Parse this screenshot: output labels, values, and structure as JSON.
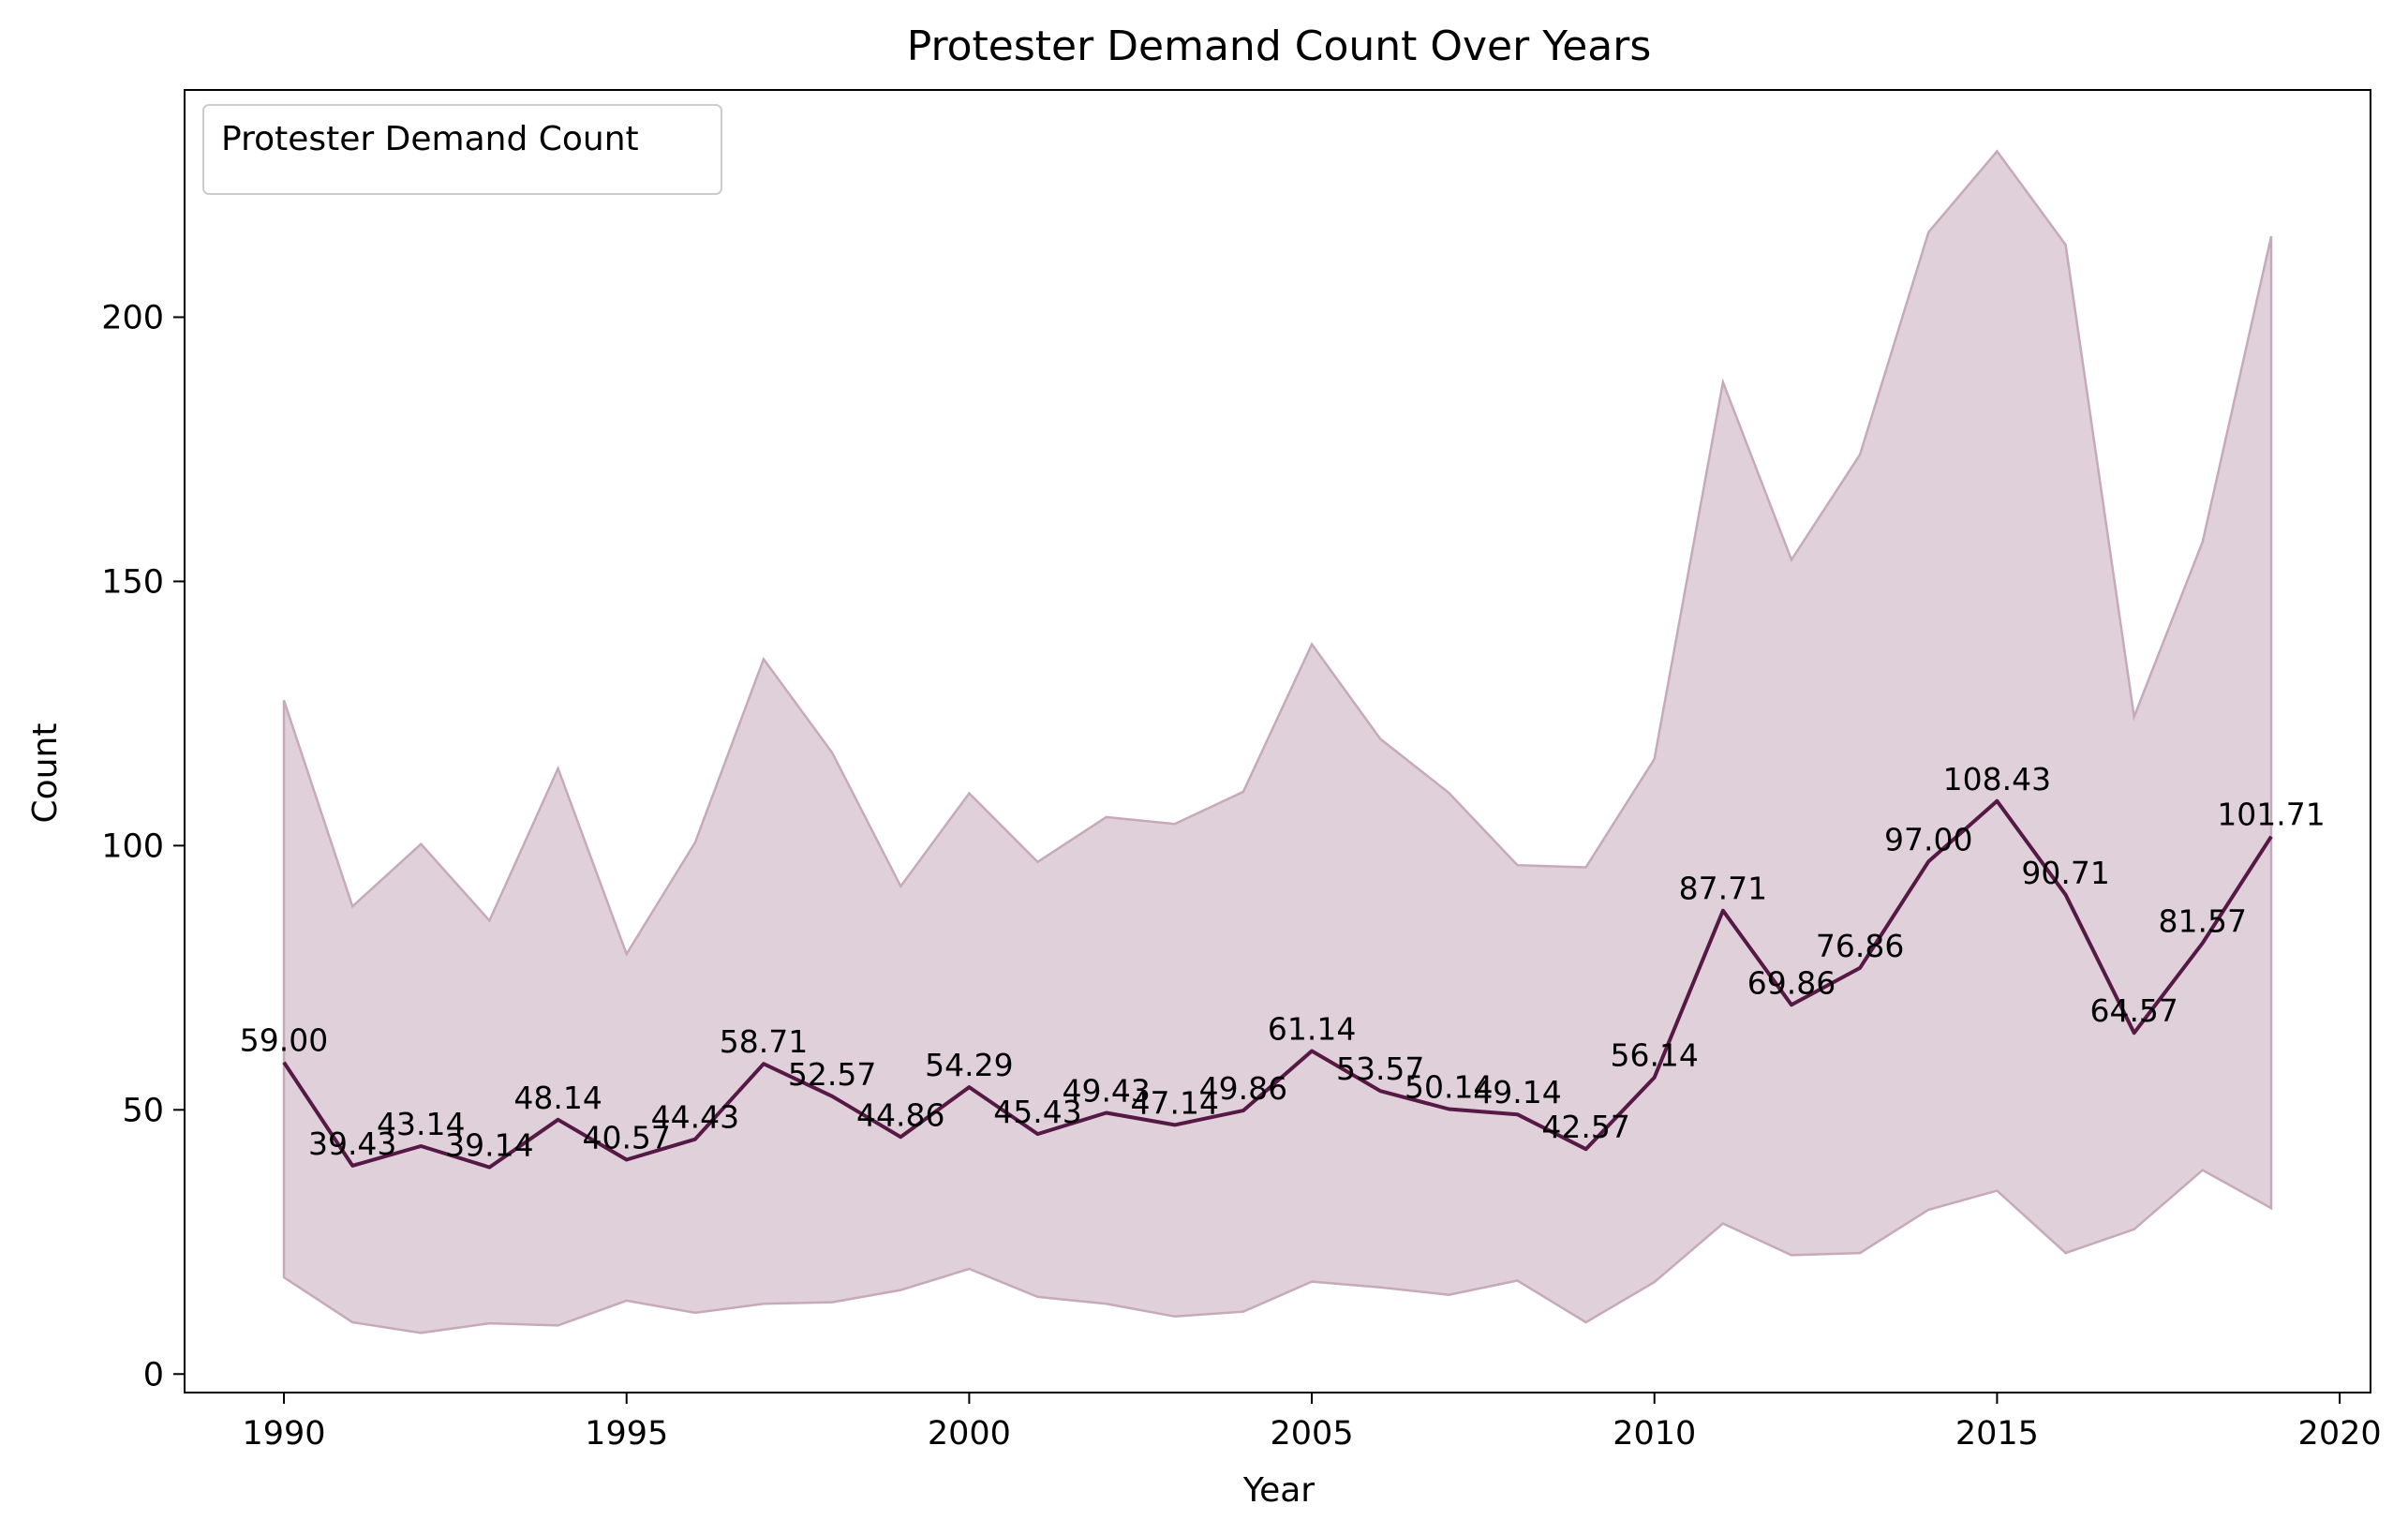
{
  "chart_data": {
    "type": "area",
    "title": "Protester Demand Count Over Years",
    "xlabel": "Year",
    "ylabel": "Count",
    "xlim": [
      1988.55,
      2020.45
    ],
    "ylim": [
      -3.5,
      243.0
    ],
    "x_ticks": [
      1990,
      1995,
      2000,
      2005,
      2010,
      2015,
      2020
    ],
    "y_ticks": [
      0,
      50,
      100,
      150,
      200
    ],
    "grid": false,
    "legend": {
      "title": "Protester Demand Count",
      "placement": "upper-left"
    },
    "colors": {
      "line": "#561845",
      "band_fill": "#dfd0da",
      "band_edge": "#c6aab9"
    },
    "x": [
      1990,
      1991,
      1992,
      1993,
      1994,
      1995,
      1996,
      1997,
      1998,
      1999,
      2000,
      2001,
      2002,
      2003,
      2004,
      2005,
      2006,
      2007,
      2008,
      2009,
      2010,
      2011,
      2012,
      2013,
      2014,
      2015,
      2016,
      2017,
      2018,
      2019
    ],
    "series": [
      {
        "values": [
          59.0,
          39.43,
          43.14,
          39.14,
          48.14,
          40.57,
          44.43,
          58.71,
          52.57,
          44.86,
          54.29,
          45.43,
          49.43,
          47.14,
          49.86,
          61.14,
          53.57,
          50.14,
          49.14,
          42.57,
          56.14,
          87.71,
          69.86,
          76.86,
          97.0,
          108.43,
          90.71,
          64.57,
          81.57,
          101.71
        ],
        "labels": [
          "59.00",
          "39.43",
          "43.14",
          "39.14",
          "48.14",
          "40.57",
          "44.43",
          "58.71",
          "52.57",
          "44.86",
          "54.29",
          "45.43",
          "49.43",
          "47.14",
          "49.86",
          "61.14",
          "53.57",
          "50.14",
          "49.14",
          "42.57",
          "56.14",
          "87.71",
          "69.86",
          "76.86",
          "97.00",
          "108.43",
          "90.71",
          "64.57",
          "81.57",
          "101.71"
        ]
      }
    ],
    "band": {
      "upper": [
        127.5,
        88.5,
        100.3,
        85.8,
        114.6,
        79.5,
        100.6,
        135.3,
        117.6,
        92.3,
        109.9,
        96.9,
        105.4,
        104.1,
        110.2,
        138.1,
        120.2,
        110.0,
        96.3,
        95.9,
        116.4,
        187.7,
        154.1,
        174.0,
        216.1,
        231.4,
        213.7,
        124.4,
        157.5,
        215.3
      ],
      "lower": [
        18.3,
        9.8,
        7.8,
        9.6,
        9.2,
        13.9,
        11.6,
        13.3,
        13.6,
        15.9,
        19.9,
        14.6,
        13.3,
        10.9,
        11.8,
        17.5,
        16.4,
        15.0,
        17.7,
        9.8,
        17.4,
        28.5,
        22.5,
        22.9,
        31.1,
        34.7,
        22.9,
        27.4,
        38.6,
        31.4
      ]
    }
  }
}
